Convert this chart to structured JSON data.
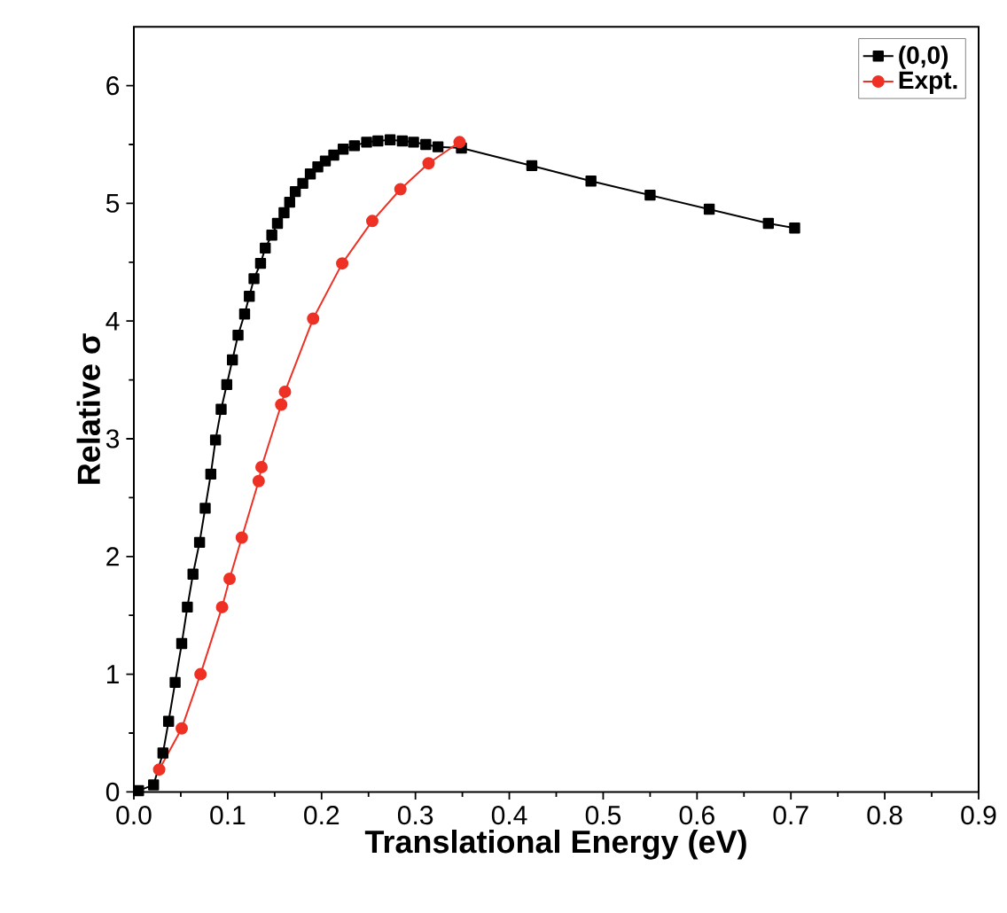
{
  "chart_data": {
    "type": "line",
    "xlabel": "Translational Energy (eV)",
    "ylabel": "Relative σ",
    "xlim": [
      0,
      0.9
    ],
    "ylim": [
      0,
      6.5
    ],
    "xticks": [
      {
        "value": 0,
        "label": "0.0"
      },
      0.1,
      0.2,
      0.3,
      0.4,
      0.5,
      0.6,
      0.7,
      0.8,
      0.9
    ],
    "yticks": [
      0,
      1,
      2,
      3,
      4,
      5,
      6
    ],
    "legend": "top right",
    "grid": false,
    "line_style": "solid",
    "series": [
      {
        "name": "(0,0)",
        "color": "#000000",
        "marker": "square",
        "x": [
          0.005,
          0.021,
          0.031,
          0.037,
          0.044,
          0.051,
          0.057,
          0.063,
          0.07,
          0.076,
          0.082,
          0.087,
          0.093,
          0.099,
          0.105,
          0.111,
          0.118,
          0.123,
          0.128,
          0.135,
          0.14,
          0.147,
          0.153,
          0.16,
          0.166,
          0.172,
          0.18,
          0.188,
          0.196,
          0.204,
          0.213,
          0.223,
          0.235,
          0.248,
          0.26,
          0.273,
          0.286,
          0.298,
          0.311,
          0.324,
          0.349,
          0.424,
          0.487,
          0.55,
          0.613,
          0.676,
          0.704
        ],
        "values": [
          0.01,
          0.06,
          0.33,
          0.6,
          0.93,
          1.26,
          1.57,
          1.85,
          2.12,
          2.41,
          2.7,
          2.99,
          3.25,
          3.46,
          3.67,
          3.88,
          4.06,
          4.21,
          4.36,
          4.49,
          4.62,
          4.73,
          4.83,
          4.92,
          5.01,
          5.1,
          5.17,
          5.25,
          5.31,
          5.36,
          5.41,
          5.46,
          5.49,
          5.52,
          5.53,
          5.54,
          5.53,
          5.52,
          5.5,
          5.48,
          5.47,
          5.32,
          5.19,
          5.07,
          4.95,
          4.83,
          4.79
        ]
      },
      {
        "name": "Expt.",
        "color": "#ee3124",
        "marker": "circle",
        "x": [
          0.027,
          0.051,
          0.071,
          0.094,
          0.102,
          0.115,
          0.133,
          0.136,
          0.157,
          0.161,
          0.191,
          0.222,
          0.254,
          0.284,
          0.314,
          0.347
        ],
        "values": [
          0.19,
          0.54,
          1.0,
          1.57,
          1.81,
          2.16,
          2.64,
          2.76,
          3.29,
          3.4,
          4.02,
          4.49,
          4.85,
          5.12,
          5.34,
          5.52
        ]
      }
    ]
  }
}
